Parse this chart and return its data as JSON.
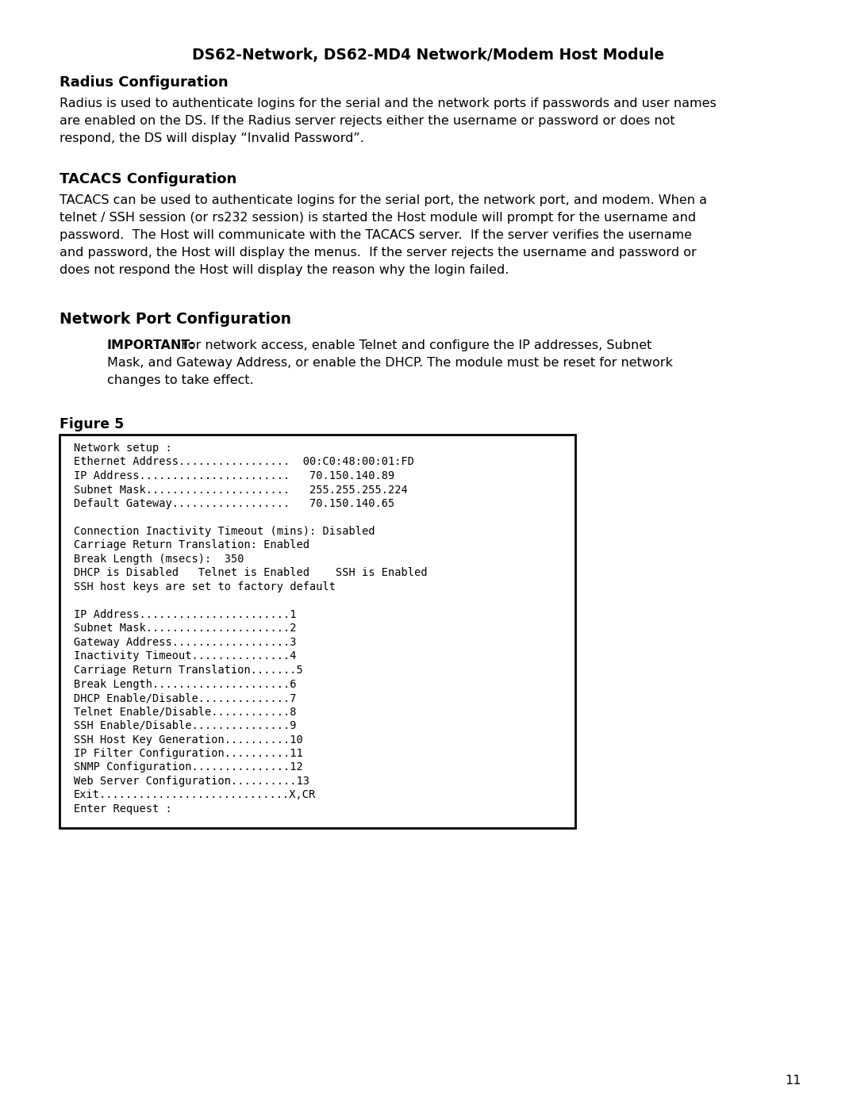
{
  "page_title": "DS62-Network, DS62-MD4 Network/Modem Host Module",
  "section1_heading": "Radius Configuration",
  "section1_body_lines": [
    "Radius is used to authenticate logins for the serial and the network ports if passwords and user names",
    "are enabled on the DS. If the Radius server rejects either the username or password or does not",
    "respond, the DS will display “Invalid Password”."
  ],
  "section2_heading": "TACACS Configuration",
  "section2_body_lines": [
    "TACACS can be used to authenticate logins for the serial port, the network port, and modem. When a",
    "telnet / SSH session (or rs232 session) is started the Host module will prompt for the username and",
    "password.  The Host will communicate with the TACACS server.  If the server verifies the username",
    "and password, the Host will display the menus.  If the server rejects the username and password or",
    "does not respond the Host will display the reason why the login failed."
  ],
  "section3_heading": "Network Port Configuration",
  "important_label": "IMPORTANT:",
  "important_lines": [
    " For network access, enable Telnet and configure the IP addresses, Subnet",
    "Mask, and Gateway Address, or enable the DHCP. The module must be reset for network",
    "changes to take effect."
  ],
  "figure_label": "Figure 5",
  "box_lines": [
    "Network setup :",
    "Ethernet Address.................  00:C0:48:00:01:FD",
    "IP Address.......................   70.150.140.89",
    "Subnet Mask......................   255.255.255.224",
    "Default Gateway..................   70.150.140.65",
    "",
    "Connection Inactivity Timeout (mins): Disabled",
    "Carriage Return Translation: Enabled",
    "Break Length (msecs):  350",
    "DHCP is Disabled   Telnet is Enabled    SSH is Enabled",
    "SSH host keys are set to factory default",
    "",
    "IP Address.......................1",
    "Subnet Mask......................2",
    "Gateway Address..................3",
    "Inactivity Timeout...............4",
    "Carriage Return Translation.......5",
    "Break Length.....................6",
    "DHCP Enable/Disable..............7",
    "Telnet Enable/Disable............8",
    "SSH Enable/Disable...............9",
    "SSH Host Key Generation..........10",
    "IP Filter Configuration..........11",
    "SNMP Configuration...............12",
    "Web Server Configuration..........13",
    "Exit.............................X,CR",
    "Enter Request :"
  ],
  "page_number": "11",
  "background_color": "#ffffff",
  "text_color": "#000000"
}
